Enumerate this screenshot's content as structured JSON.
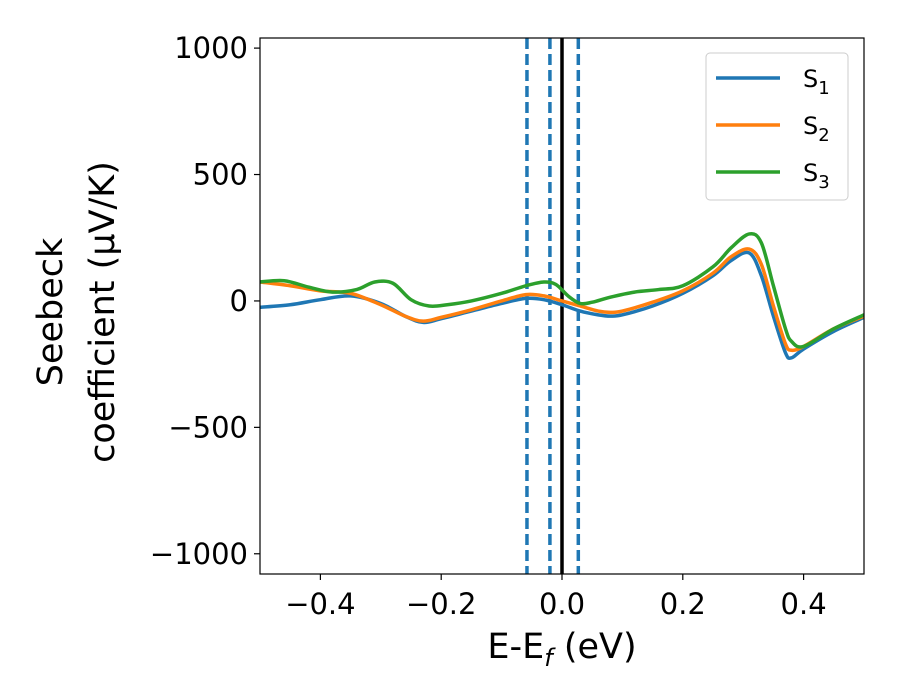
{
  "chart_data": {
    "type": "line",
    "xlabel": {
      "main": "E-E",
      "sub": "f",
      "rest": " (eV)"
    },
    "ylabel": {
      "line1": "Seebeck",
      "line2": "coefficient  (μV/K)"
    },
    "xlim": [
      -0.5,
      0.5
    ],
    "ylim": [
      -1080,
      1040
    ],
    "xticks": [
      -0.4,
      -0.2,
      0.0,
      0.2,
      0.4
    ],
    "xtick_labels": [
      "−0.4",
      "−0.2",
      "0.0",
      "0.2",
      "0.4"
    ],
    "yticks": [
      -1000,
      -500,
      0,
      500,
      1000
    ],
    "ytick_labels": [
      "−1000",
      "−500",
      "0",
      "500",
      "1000"
    ],
    "grid": false,
    "legend_position": "top-right",
    "series": [
      {
        "name": "S1",
        "name_main": "S",
        "name_sub": "1",
        "color": "#1f77b4",
        "x": [
          -0.5,
          -0.45,
          -0.4,
          -0.35,
          -0.3,
          -0.26,
          -0.23,
          -0.2,
          -0.15,
          -0.1,
          -0.06,
          -0.03,
          0.0,
          0.03,
          0.06,
          0.08,
          0.1,
          0.15,
          0.2,
          0.25,
          0.28,
          0.31,
          0.33,
          0.35,
          0.37,
          0.38,
          0.4,
          0.45,
          0.5
        ],
        "y": [
          -25,
          -15,
          5,
          20,
          -10,
          -60,
          -85,
          -70,
          -40,
          -10,
          10,
          5,
          -15,
          -40,
          -55,
          -60,
          -55,
          -20,
          30,
          100,
          160,
          190,
          100,
          -60,
          -205,
          -225,
          -190,
          -120,
          -65
        ]
      },
      {
        "name": "S2",
        "name_main": "S",
        "name_sub": "2",
        "color": "#ff7f0e",
        "x": [
          -0.5,
          -0.45,
          -0.4,
          -0.35,
          -0.3,
          -0.26,
          -0.23,
          -0.2,
          -0.15,
          -0.1,
          -0.06,
          -0.03,
          0.0,
          0.03,
          0.06,
          0.08,
          0.1,
          0.15,
          0.2,
          0.25,
          0.28,
          0.31,
          0.33,
          0.35,
          0.37,
          0.38,
          0.4,
          0.45,
          0.5
        ],
        "y": [
          75,
          60,
          40,
          30,
          -15,
          -60,
          -80,
          -65,
          -35,
          0,
          25,
          20,
          0,
          -20,
          -40,
          -45,
          -40,
          -5,
          40,
          110,
          175,
          205,
          145,
          -20,
          -170,
          -195,
          -180,
          -110,
          -60
        ]
      },
      {
        "name": "S3",
        "name_main": "S",
        "name_sub": "3",
        "color": "#2ca02c",
        "x": [
          -0.5,
          -0.46,
          -0.42,
          -0.38,
          -0.34,
          -0.31,
          -0.28,
          -0.25,
          -0.22,
          -0.19,
          -0.15,
          -0.1,
          -0.06,
          -0.03,
          -0.01,
          0.01,
          0.03,
          0.05,
          0.08,
          0.12,
          0.16,
          0.2,
          0.25,
          0.28,
          0.31,
          0.33,
          0.35,
          0.37,
          0.38,
          0.4,
          0.45,
          0.5
        ],
        "y": [
          75,
          80,
          55,
          35,
          45,
          75,
          70,
          5,
          -20,
          -15,
          0,
          30,
          60,
          75,
          65,
          20,
          -10,
          -5,
          15,
          35,
          45,
          60,
          135,
          210,
          265,
          230,
          60,
          -110,
          -160,
          -180,
          -110,
          -55
        ]
      }
    ],
    "vlines": [
      {
        "x": -0.058,
        "color": "#1f77b4",
        "style": "dashed"
      },
      {
        "x": -0.02,
        "color": "#1f77b4",
        "style": "dashed"
      },
      {
        "x": 0.027,
        "color": "#1f77b4",
        "style": "dashed"
      },
      {
        "x": 0.0,
        "color": "#000000",
        "style": "solid"
      }
    ]
  }
}
